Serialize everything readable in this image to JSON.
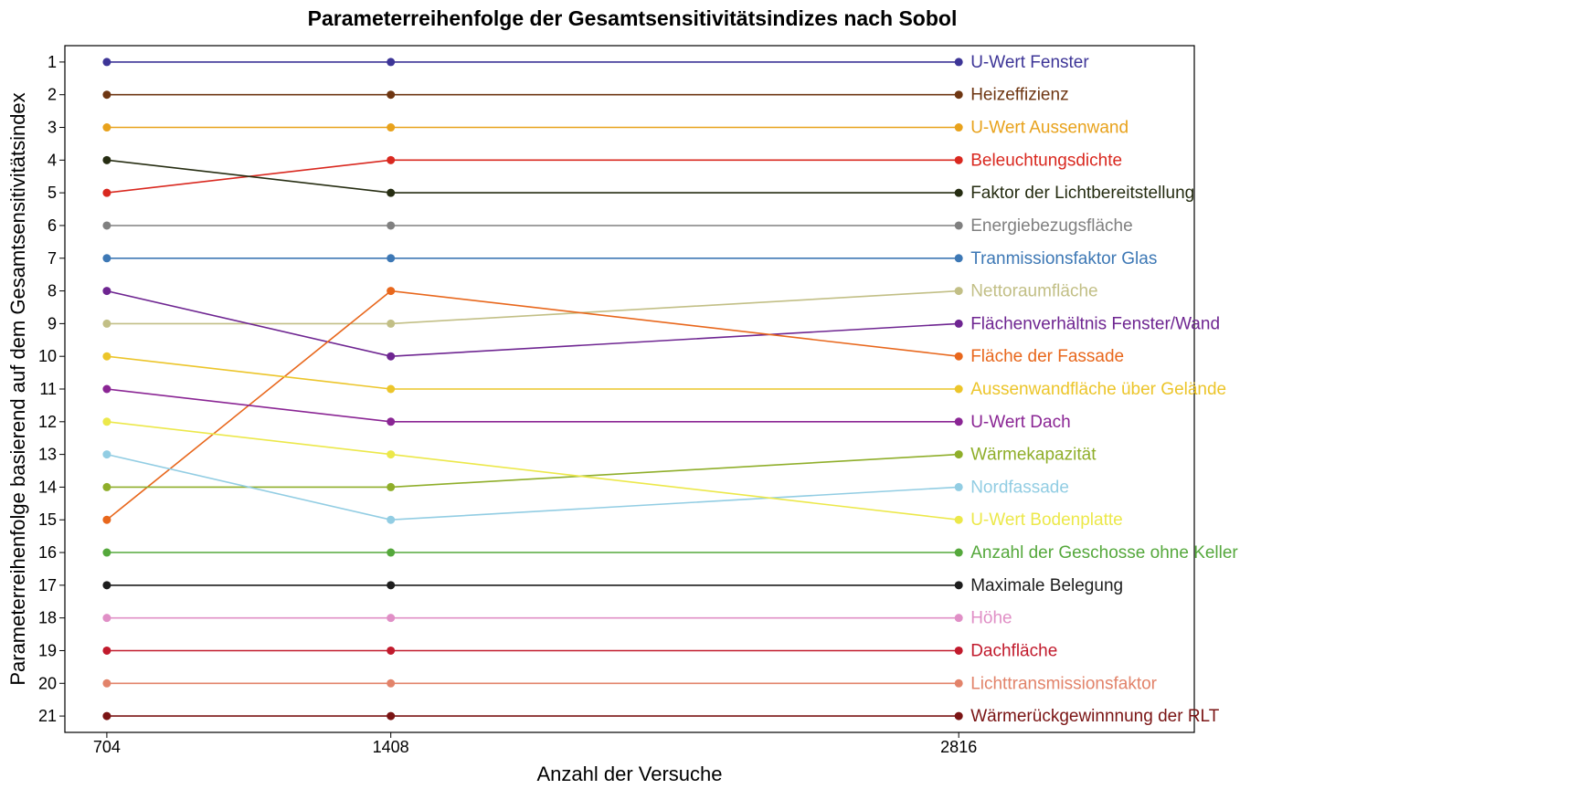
{
  "chart_data": {
    "type": "line",
    "title": "Parameterreihenfolge der Gesamtsensitivitätsindizes nach Sobol",
    "xlabel": "Anzahl der Versuche",
    "ylabel": "Parameterreihenfolge basierend auf dem Gesamtsensitivitätsindex",
    "x": [
      704,
      1408,
      2816
    ],
    "x_tick_labels": [
      "704",
      "1408",
      "2816"
    ],
    "xlim": [
      600,
      3400
    ],
    "ylim": [
      21.5,
      0.5
    ],
    "y_inverted": true,
    "y_ticks": [
      1,
      2,
      3,
      4,
      5,
      6,
      7,
      8,
      9,
      10,
      11,
      12,
      13,
      14,
      15,
      16,
      17,
      18,
      19,
      20,
      21
    ],
    "grid": false,
    "legend": "direct labels at right end of each line",
    "series": [
      {
        "name": "U-Wert Fenster",
        "values": [
          1,
          1,
          1
        ],
        "color": "#3d3597"
      },
      {
        "name": "Heizeffizienz",
        "values": [
          2,
          2,
          2
        ],
        "color": "#6e3612"
      },
      {
        "name": "U-Wert Aussenwand",
        "values": [
          3,
          3,
          3
        ],
        "color": "#e8a21c"
      },
      {
        "name": "Beleuchtungsdichte",
        "values": [
          5,
          4,
          4
        ],
        "color": "#d9281f"
      },
      {
        "name": "Faktor der Lichtbereitstellung",
        "values": [
          4,
          5,
          5
        ],
        "color": "#262d12"
      },
      {
        "name": "Energiebezugsfläche",
        "values": [
          6,
          6,
          6
        ],
        "color": "#808080"
      },
      {
        "name": "Tranmissionsfaktor Glas",
        "values": [
          7,
          7,
          7
        ],
        "color": "#3d78b5"
      },
      {
        "name": "Nettoraumfläche",
        "values": [
          9,
          9,
          8
        ],
        "color": "#c2bf86"
      },
      {
        "name": "Flächenverhältnis Fenster/Wand",
        "values": [
          8,
          10,
          9
        ],
        "color": "#6e2591"
      },
      {
        "name": "Fläche der Fassade",
        "values": [
          15,
          8,
          10
        ],
        "color": "#e8671c"
      },
      {
        "name": "Aussenwandfläche über Gelände",
        "values": [
          10,
          11,
          11
        ],
        "color": "#ecc52a"
      },
      {
        "name": "U-Wert Dach",
        "values": [
          11,
          12,
          12
        ],
        "color": "#8a2594"
      },
      {
        "name": "Wärmekapazität",
        "values": [
          14,
          14,
          13
        ],
        "color": "#8fae2a"
      },
      {
        "name": "Nordfassade",
        "values": [
          13,
          15,
          14
        ],
        "color": "#92cde3"
      },
      {
        "name": "U-Wert Bodenplatte",
        "values": [
          12,
          13,
          15
        ],
        "color": "#ece84a"
      },
      {
        "name": "Anzahl der Geschosse ohne Keller",
        "values": [
          16,
          16,
          16
        ],
        "color": "#55a83c"
      },
      {
        "name": "Maximale Belegung",
        "values": [
          17,
          17,
          17
        ],
        "color": "#1d1d1d"
      },
      {
        "name": "Höhe",
        "values": [
          18,
          18,
          18
        ],
        "color": "#e08fc6"
      },
      {
        "name": "Dachfläche",
        "values": [
          19,
          19,
          19
        ],
        "color": "#c11a2c"
      },
      {
        "name": "Lichttransmissionsfaktor",
        "values": [
          20,
          20,
          20
        ],
        "color": "#e2836a"
      },
      {
        "name": "Wärmerückgewinnnung der RLT",
        "values": [
          21,
          21,
          21
        ],
        "color": "#7a1414"
      }
    ]
  }
}
